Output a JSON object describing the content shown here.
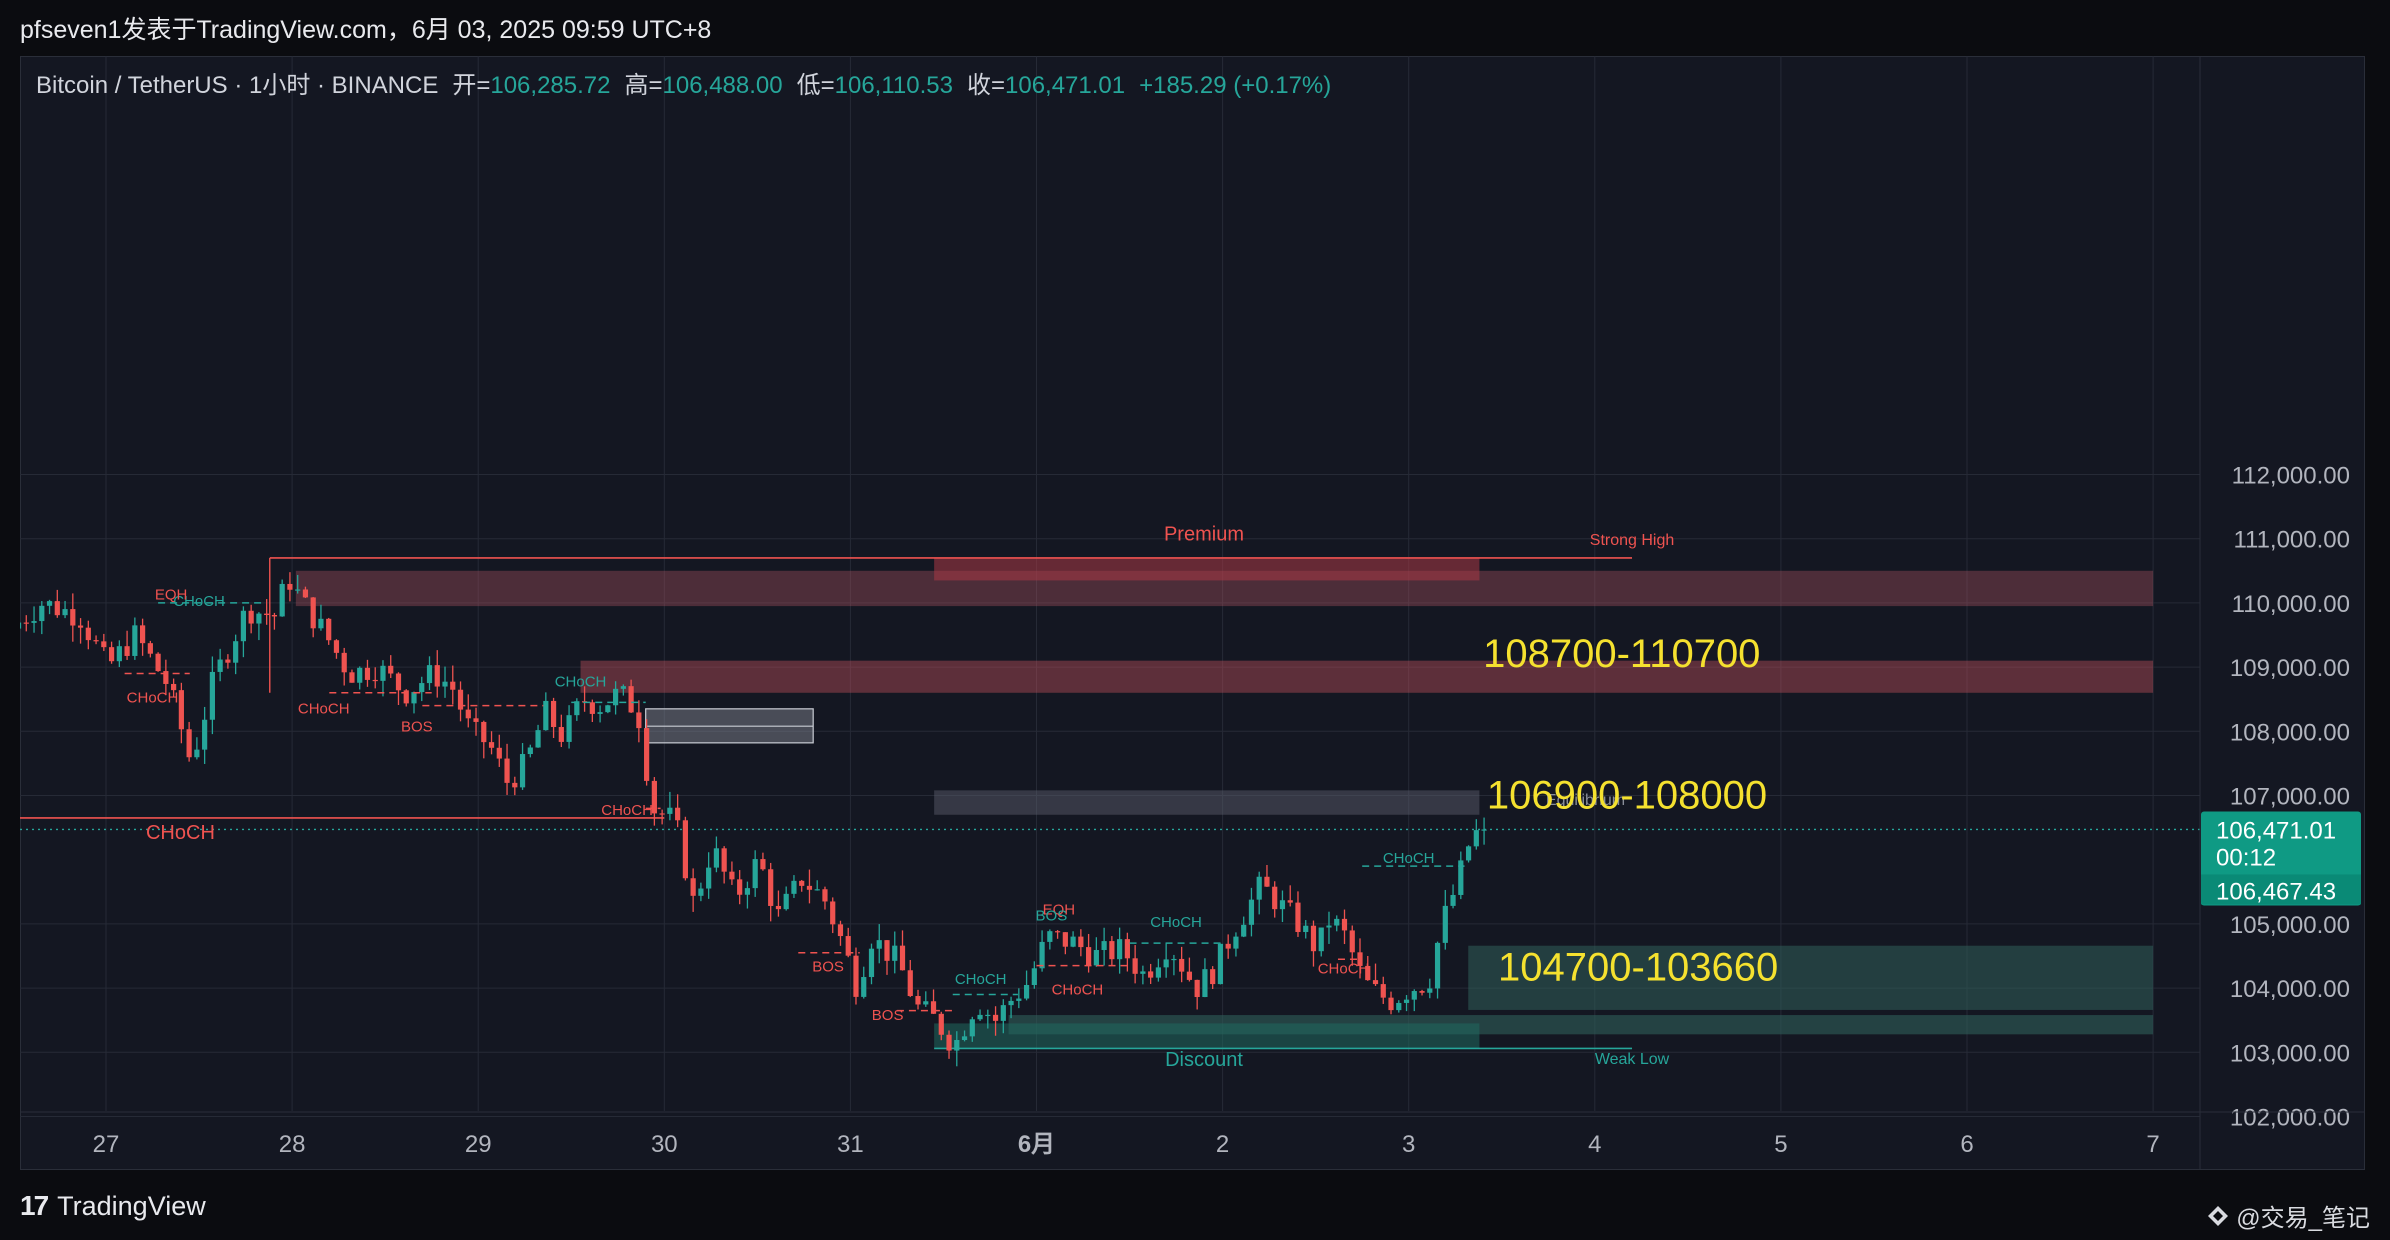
{
  "window": {
    "title": "pfseven1发表于TradingView.com，6月 03, 2025 09:59 UTC+8"
  },
  "header": {
    "symbol": "Bitcoin / TetherUS · 1小时 · BINANCE",
    "open_label": "开=",
    "open": "106,285.72",
    "high_label": "高=",
    "high": "106,488.00",
    "low_label": "低=",
    "low": "106,110.53",
    "close_label": "收=",
    "close": "106,471.01",
    "change": "+185.29 (+0.17%)"
  },
  "colors": {
    "up": "#26a69a",
    "down": "#ef5350",
    "background": "#141722",
    "grid": "#262a36",
    "axis_text": "#b2b5be",
    "yellow_label": "#f5e12f"
  },
  "chart_data": {
    "type": "candlestick",
    "title": "Bitcoin / TetherUS · 1小时 · BINANCE",
    "xlabel": "",
    "ylabel": "",
    "ylim": [
      101500,
      112700
    ],
    "y_ticks": [
      "112,000.00",
      "111,000.00",
      "110,000.00",
      "109,000.00",
      "108,000.00",
      "107,000.00",
      "105,000.00",
      "104,000.00",
      "103,000.00",
      "102,000.00"
    ],
    "x_ticks": [
      {
        "label": "27",
        "day": 0
      },
      {
        "label": "28",
        "day": 1
      },
      {
        "label": "29",
        "day": 2
      },
      {
        "label": "30",
        "day": 3
      },
      {
        "label": "31",
        "day": 4
      },
      {
        "label": "6月",
        "day": 5
      },
      {
        "label": "2",
        "day": 6
      },
      {
        "label": "3",
        "day": 7
      },
      {
        "label": "4",
        "day": 8
      },
      {
        "label": "5",
        "day": 9
      },
      {
        "label": "6",
        "day": 10
      },
      {
        "label": "7",
        "day": 11
      }
    ],
    "x_start_day": -0.47,
    "x_end_day": 11.0,
    "price_path": [
      [
        -0.47,
        109600
      ],
      [
        -0.3,
        110000
      ],
      [
        -0.1,
        109800
      ],
      [
        0.05,
        109000
      ],
      [
        0.2,
        109500
      ],
      [
        0.38,
        108700
      ],
      [
        0.5,
        107500
      ],
      [
        0.62,
        108800
      ],
      [
        0.8,
        109900
      ],
      [
        0.95,
        109800
      ],
      [
        1.02,
        110400
      ],
      [
        1.1,
        110000
      ],
      [
        1.2,
        109600
      ],
      [
        1.35,
        108900
      ],
      [
        1.5,
        109000
      ],
      [
        1.65,
        108600
      ],
      [
        1.8,
        108900
      ],
      [
        1.9,
        108700
      ],
      [
        2.0,
        108000
      ],
      [
        2.1,
        107800
      ],
      [
        2.2,
        107200
      ],
      [
        2.3,
        107500
      ],
      [
        2.4,
        108300
      ],
      [
        2.5,
        107900
      ],
      [
        2.6,
        108500
      ],
      [
        2.7,
        108400
      ],
      [
        2.8,
        108600
      ],
      [
        2.9,
        108300
      ],
      [
        2.98,
        106800
      ],
      [
        3.1,
        106600
      ],
      [
        3.2,
        105300
      ],
      [
        3.3,
        106200
      ],
      [
        3.42,
        105400
      ],
      [
        3.55,
        106000
      ],
      [
        3.65,
        105100
      ],
      [
        3.78,
        105700
      ],
      [
        3.9,
        105400
      ],
      [
        4.0,
        104700
      ],
      [
        4.08,
        104000
      ],
      [
        4.15,
        104800
      ],
      [
        4.3,
        104400
      ],
      [
        4.4,
        103700
      ],
      [
        4.5,
        103500
      ],
      [
        4.6,
        103100
      ],
      [
        4.72,
        103800
      ],
      [
        4.82,
        103500
      ],
      [
        4.9,
        103800
      ],
      [
        5.0,
        104100
      ],
      [
        5.1,
        104800
      ],
      [
        5.25,
        104700
      ],
      [
        5.35,
        104500
      ],
      [
        5.5,
        104600
      ],
      [
        5.62,
        104200
      ],
      [
        5.75,
        104700
      ],
      [
        5.9,
        104000
      ],
      [
        6.0,
        104300
      ],
      [
        6.1,
        104900
      ],
      [
        6.25,
        105600
      ],
      [
        6.35,
        105300
      ],
      [
        6.45,
        105000
      ],
      [
        6.55,
        104600
      ],
      [
        6.62,
        105100
      ],
      [
        6.7,
        104800
      ],
      [
        6.8,
        104100
      ],
      [
        6.88,
        103900
      ],
      [
        6.95,
        103800
      ],
      [
        7.05,
        104000
      ],
      [
        7.15,
        104100
      ],
      [
        7.22,
        105000
      ],
      [
        7.3,
        105600
      ],
      [
        7.36,
        106200
      ],
      [
        7.42,
        106471
      ]
    ],
    "current_price": 106471.01,
    "current_price_label": "106,471.01",
    "countdown": "00:12",
    "bid_label": "106,467.43",
    "zones": [
      {
        "name": "supply-zone-upper",
        "y1": 110500,
        "y2": 109950,
        "x1": 1.02,
        "x2": 11.0,
        "color": "#b85563",
        "opacity": 0.35
      },
      {
        "name": "supply-zone-lower",
        "y1": 109100,
        "y2": 108600,
        "x1": 2.55,
        "x2": 11.0,
        "color": "#c4505e",
        "opacity": 0.42
      },
      {
        "name": "premium-zone",
        "y1": 110700,
        "y2": 110350,
        "x1": 4.45,
        "x2": 7.38,
        "color": "#a93945",
        "opacity": 0.55
      },
      {
        "name": "equilibrium-zone",
        "y1": 107080,
        "y2": 106700,
        "x1": 4.45,
        "x2": 7.38,
        "color": "#5f6270",
        "opacity": 0.45
      },
      {
        "name": "order-block-gray",
        "y1": 108350,
        "y2": 107820,
        "x1": 2.9,
        "x2": 3.8,
        "color": "#8a8e99",
        "opacity": 0.45
      },
      {
        "name": "demand-zone",
        "y1": 104660,
        "y2": 103660,
        "x1": 7.32,
        "x2": 11.0,
        "color": "#2f5f5a",
        "opacity": 0.55
      },
      {
        "name": "demand-zone-lower",
        "y1": 103580,
        "y2": 103280,
        "x1": 4.85,
        "x2": 11.0,
        "color": "#2f5f5a",
        "opacity": 0.6
      },
      {
        "name": "discount-zone",
        "y1": 103450,
        "y2": 103060,
        "x1": 4.45,
        "x2": 7.38,
        "color": "#1f6a5f",
        "opacity": 0.55
      }
    ],
    "levels": [
      {
        "name": "strong-high-line",
        "price": 110700,
        "x1": 0.88,
        "x2": 8.2,
        "color": "#ef5350"
      },
      {
        "name": "choch-line",
        "price": 106650,
        "x1": -0.47,
        "x2": 3.0,
        "color": "#ef5350"
      },
      {
        "name": "weak-low-line",
        "price": 103060,
        "x1": 4.45,
        "x2": 8.2,
        "color": "#26a69a"
      }
    ],
    "zone_labels": [
      {
        "text": "108700-110700",
        "price": 109000,
        "day": 7.4
      },
      {
        "text": "106900-108000",
        "price": 106800,
        "day": 7.42
      },
      {
        "text": "104700-103660",
        "price": 104120,
        "day": 7.48
      }
    ],
    "annotations": [
      {
        "text": "Premium",
        "price": 110970,
        "day": 5.9,
        "color": "#ef5350",
        "size": 20
      },
      {
        "text": "Strong High",
        "price": 110900,
        "day": 8.2,
        "color": "#ef5350",
        "size": 16
      },
      {
        "text": "Discount",
        "price": 102790,
        "day": 5.9,
        "color": "#26a69a",
        "size": 20
      },
      {
        "text": "Weak Low",
        "price": 102820,
        "day": 8.2,
        "color": "#26a69a",
        "size": 16
      },
      {
        "text": "Equilibrium",
        "price": 106850,
        "day": 7.95,
        "color": "#8a8e99",
        "size": 16
      },
      {
        "text": "CHoCH",
        "price": 106320,
        "day": 0.4,
        "color": "#ef5350",
        "size": 20
      },
      {
        "text": "CHoCH",
        "price": 109950,
        "day": 0.5,
        "color": "#26a69a",
        "size": 15
      },
      {
        "text": "EQH",
        "price": 110050,
        "day": 0.35,
        "color": "#ef5350",
        "size": 15
      },
      {
        "text": "CHoCH",
        "price": 108450,
        "day": 0.25,
        "color": "#ef5350",
        "size": 15
      },
      {
        "text": "CHoCH",
        "price": 108280,
        "day": 1.17,
        "color": "#ef5350",
        "size": 15
      },
      {
        "text": "BOS",
        "price": 108000,
        "day": 1.67,
        "color": "#ef5350",
        "size": 15
      },
      {
        "text": "CHoCH",
        "price": 108700,
        "day": 2.55,
        "color": "#26a69a",
        "size": 15
      },
      {
        "text": "CHoCH",
        "price": 106700,
        "day": 2.8,
        "color": "#ef5350",
        "size": 15
      },
      {
        "text": "BOS",
        "price": 104260,
        "day": 3.88,
        "color": "#ef5350",
        "size": 15
      },
      {
        "text": "BOS",
        "price": 103500,
        "day": 4.2,
        "color": "#ef5350",
        "size": 15
      },
      {
        "text": "CHoCH",
        "price": 104060,
        "day": 4.7,
        "color": "#26a69a",
        "size": 15
      },
      {
        "text": "EQH",
        "price": 105150,
        "day": 5.12,
        "color": "#ef5350",
        "size": 15
      },
      {
        "text": "BOS",
        "price": 105050,
        "day": 5.08,
        "color": "#26a69a",
        "size": 15
      },
      {
        "text": "CHoCH",
        "price": 103900,
        "day": 5.22,
        "color": "#ef5350",
        "size": 15
      },
      {
        "text": "CHoCH",
        "price": 104950,
        "day": 5.75,
        "color": "#26a69a",
        "size": 15
      },
      {
        "text": "CHoCH",
        "price": 104230,
        "day": 6.65,
        "color": "#ef5350",
        "size": 15
      },
      {
        "text": "CHoCH",
        "price": 105950,
        "day": 7.0,
        "color": "#26a69a",
        "size": 15
      }
    ]
  },
  "footer": {
    "brand": "TradingView",
    "watermark": "@交易_笔记"
  }
}
